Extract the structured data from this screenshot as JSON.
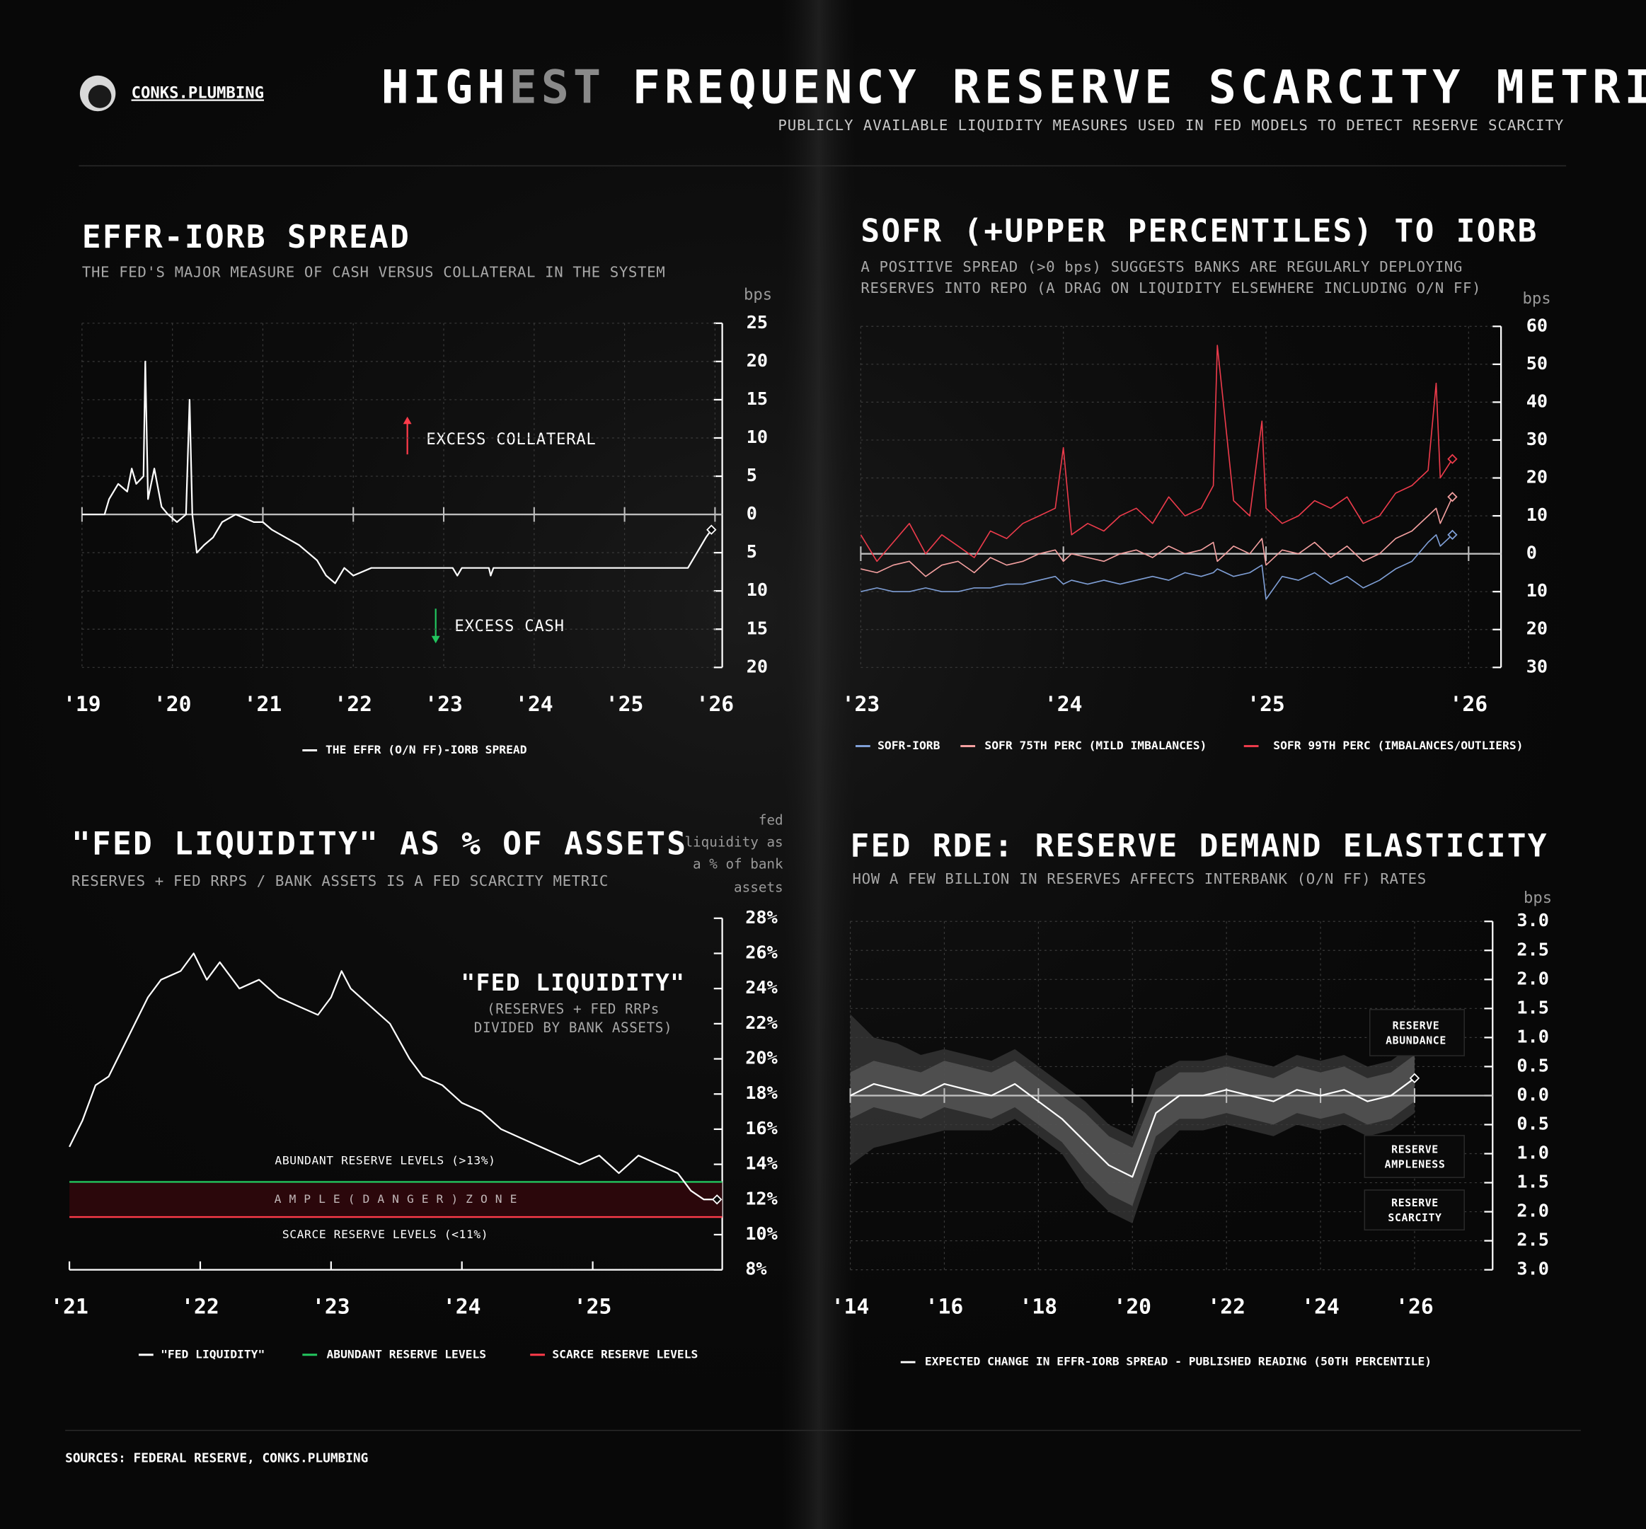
{
  "header": {
    "brand": "CONKS.PLUMBING",
    "title_parts": [
      "HIGH",
      "EST",
      "FREQUENCY RESERVE SCARCITY METRICS"
    ],
    "subtitle": "PUBLICLY AVAILABLE LIQUIDITY MEASURES USED IN FED MODELS TO DETECT RESERVE SCARCITY"
  },
  "chart_data": [
    {
      "type": "line",
      "title": "EFFR-IORB SPREAD",
      "subtitle": "THE FED'S MAJOR MEASURE OF CASH VERSUS COLLATERAL IN THE SYSTEM",
      "y_unit": "bps",
      "annotations": [
        {
          "text": "EXCESS COLLATERAL",
          "color": "#ff3b4a"
        },
        {
          "text": "EXCESS CASH",
          "color": "#22c55e"
        }
      ],
      "xlim": [
        2019,
        2026.08
      ],
      "xticks": [
        {
          "value": 2019,
          "label": "'19"
        },
        {
          "value": 2020,
          "label": "'20"
        },
        {
          "value": 2021,
          "label": "'21"
        },
        {
          "value": 2022,
          "label": "'22"
        },
        {
          "value": 2023,
          "label": "'23"
        },
        {
          "value": 2024,
          "label": "'24"
        },
        {
          "value": 2025,
          "label": "'25"
        },
        {
          "value": 2026,
          "label": "'26"
        }
      ],
      "ylim": [
        -20,
        25
      ],
      "yticks": [
        25,
        20,
        15,
        10,
        5,
        0,
        {
          "value": -5,
          "label": "5"
        },
        {
          "value": -10,
          "label": "10"
        },
        {
          "value": -15,
          "label": "15"
        },
        {
          "value": -20,
          "label": "20"
        }
      ],
      "grid": true,
      "zero_line": true,
      "x": [
        2019.0,
        2019.25,
        2019.3,
        2019.4,
        2019.5,
        2019.55,
        2019.6,
        2019.68,
        2019.7,
        2019.73,
        2019.8,
        2019.88,
        2019.95,
        2020.05,
        2020.15,
        2020.19,
        2020.22,
        2020.27,
        2020.35,
        2020.45,
        2020.55,
        2020.7,
        2020.9,
        2021.0,
        2021.1,
        2021.25,
        2021.4,
        2021.5,
        2021.6,
        2021.7,
        2021.8,
        2021.9,
        2022.0,
        2022.2,
        2022.5,
        2022.8,
        2023.1,
        2023.15,
        2023.2,
        2023.5,
        2023.52,
        2023.55,
        2024.0,
        2024.5,
        2025.0,
        2025.5,
        2025.7,
        2025.8,
        2025.9,
        2025.96
      ],
      "series": [
        {
          "name": "THE EFFR (O/N FF)-IORB SPREAD",
          "color": "#ffffff",
          "values": [
            0,
            0,
            2,
            4,
            3,
            6,
            4,
            5,
            20,
            2,
            6,
            1,
            0,
            -1,
            0,
            15,
            0,
            -5,
            -4,
            -3,
            -1,
            0,
            -1,
            -1,
            -2,
            -3,
            -4,
            -5,
            -6,
            -8,
            -9,
            -7,
            -8,
            -7,
            -7,
            -7,
            -7,
            -8,
            -7,
            -7,
            -8,
            -7,
            -7,
            -7,
            -7,
            -7,
            -7,
            -5,
            -3,
            -2
          ]
        }
      ]
    },
    {
      "type": "line",
      "title": "SOFR (+UPPER PERCENTILES) TO IORB",
      "subtitle_lines": [
        "A POSITIVE SPREAD (>0 bps) SUGGESTS BANKS ARE REGULARLY DEPLOYING",
        "RESERVES INTO REPO (A DRAG ON LIQUIDITY ELSEWHERE INCLUDING O/N FF)"
      ],
      "y_unit": "bps",
      "xlim": [
        2023,
        2026.16
      ],
      "xticks": [
        {
          "value": 2023,
          "label": "'23"
        },
        {
          "value": 2024,
          "label": "'24"
        },
        {
          "value": 2025,
          "label": "'25"
        },
        {
          "value": 2026,
          "label": "'26"
        }
      ],
      "ylim": [
        -30,
        60
      ],
      "yticks": [
        60,
        50,
        40,
        30,
        20,
        10,
        0,
        {
          "value": -10,
          "label": "10"
        },
        {
          "value": -20,
          "label": "20"
        },
        {
          "value": -30,
          "label": "30"
        }
      ],
      "grid": true,
      "zero_line": true,
      "x": [
        2023.0,
        2023.08,
        2023.16,
        2023.24,
        2023.32,
        2023.4,
        2023.48,
        2023.56,
        2023.64,
        2023.72,
        2023.8,
        2023.88,
        2023.96,
        2024.0,
        2024.04,
        2024.12,
        2024.2,
        2024.28,
        2024.36,
        2024.44,
        2024.52,
        2024.6,
        2024.68,
        2024.74,
        2024.76,
        2024.84,
        2024.92,
        2024.98,
        2025.0,
        2025.08,
        2025.16,
        2025.24,
        2025.32,
        2025.4,
        2025.48,
        2025.56,
        2025.64,
        2025.72,
        2025.8,
        2025.84,
        2025.86,
        2025.92
      ],
      "series": [
        {
          "name": "SOFR-IORB",
          "color": "#7f9fd6",
          "values": [
            -10,
            -9,
            -10,
            -10,
            -9,
            -10,
            -10,
            -9,
            -9,
            -8,
            -8,
            -7,
            -6,
            -8,
            -7,
            -8,
            -7,
            -8,
            -7,
            -6,
            -7,
            -5,
            -6,
            -5,
            -4,
            -6,
            -5,
            -3,
            -12,
            -6,
            -7,
            -5,
            -8,
            -6,
            -9,
            -7,
            -4,
            -2,
            3,
            5,
            2,
            5
          ]
        },
        {
          "name": "SOFR 75TH PERC (MILD IMBALANCES)",
          "color": "#f4a0a0",
          "values": [
            -4,
            -5,
            -3,
            -2,
            -6,
            -3,
            -2,
            -5,
            -1,
            -3,
            -2,
            0,
            1,
            -2,
            0,
            -1,
            -2,
            0,
            1,
            -1,
            2,
            0,
            1,
            3,
            -2,
            2,
            0,
            4,
            -3,
            1,
            0,
            3,
            -1,
            2,
            -2,
            0,
            4,
            6,
            10,
            12,
            8,
            15
          ]
        },
        {
          "name": "SOFR 99TH PERC (IMBALANCES/OUTLIERS)",
          "color": "#ec3b4b",
          "values": [
            5,
            -2,
            3,
            8,
            0,
            5,
            2,
            -1,
            6,
            4,
            8,
            10,
            12,
            28,
            5,
            8,
            6,
            10,
            12,
            8,
            15,
            10,
            12,
            18,
            55,
            14,
            10,
            35,
            12,
            8,
            10,
            14,
            12,
            15,
            8,
            10,
            16,
            18,
            22,
            45,
            20,
            25
          ]
        }
      ]
    },
    {
      "type": "line",
      "title": "\"FED LIQUIDITY\" AS % OF ASSETS",
      "subtitle": "RESERVES + FED RRPS / BANK ASSETS IS A FED SCARCITY METRIC",
      "y_unit_lines": [
        "fed",
        "liquidity as",
        "a % of bank",
        "assets"
      ],
      "annotation": {
        "title": "\"FED LIQUIDITY\"",
        "lines": [
          "(RESERVES + FED RRPs",
          "DIVIDED BY BANK ASSETS)"
        ]
      },
      "zone_label": "A M P L E   ( D A N G E R )   Z O N E",
      "zone_color": "#2b070b",
      "xlim": [
        2021,
        2025.99
      ],
      "xticks": [
        {
          "value": 2021,
          "label": "'21"
        },
        {
          "value": 2022,
          "label": "'22"
        },
        {
          "value": 2023,
          "label": "'23"
        },
        {
          "value": 2024,
          "label": "'24"
        },
        {
          "value": 2025,
          "label": "'25"
        }
      ],
      "ylim": [
        8,
        28
      ],
      "yticks": [
        {
          "value": 28,
          "label": "28%"
        },
        {
          "value": 26,
          "label": "26%"
        },
        {
          "value": 24,
          "label": "24%"
        },
        {
          "value": 22,
          "label": "22%"
        },
        {
          "value": 20,
          "label": "20%"
        },
        {
          "value": 18,
          "label": "18%"
        },
        {
          "value": 16,
          "label": "16%"
        },
        {
          "value": 14,
          "label": "14%"
        },
        {
          "value": 12,
          "label": "12%"
        },
        {
          "value": 10,
          "label": "10%"
        },
        {
          "value": 8,
          "label": "8%"
        }
      ],
      "grid": false,
      "zero_line": false,
      "reference_lines": [
        {
          "name": "ABUNDANT RESERVE LEVELS",
          "label": "ABUNDANT RESERVE LEVELS (>13%)",
          "value": 13,
          "color": "#22c55e"
        },
        {
          "name": "SCARCE RESERVE LEVELS",
          "label": "SCARCE RESERVE LEVELS (<11%)",
          "value": 11,
          "color": "#ff3b4a"
        }
      ],
      "x": [
        2021.0,
        2021.1,
        2021.2,
        2021.3,
        2021.4,
        2021.5,
        2021.6,
        2021.7,
        2021.85,
        2021.95,
        2022.05,
        2022.15,
        2022.3,
        2022.45,
        2022.6,
        2022.75,
        2022.9,
        2023.0,
        2023.08,
        2023.15,
        2023.3,
        2023.45,
        2023.6,
        2023.7,
        2023.85,
        2024.0,
        2024.15,
        2024.3,
        2024.45,
        2024.6,
        2024.75,
        2024.9,
        2025.05,
        2025.2,
        2025.35,
        2025.5,
        2025.65,
        2025.75,
        2025.85,
        2025.95
      ],
      "series": [
        {
          "name": "\"FED LIQUIDITY\"",
          "color": "#ffffff",
          "values": [
            15,
            16.5,
            18.5,
            19,
            20.5,
            22,
            23.5,
            24.5,
            25,
            26,
            24.5,
            25.5,
            24,
            24.5,
            23.5,
            23,
            22.5,
            23.5,
            25,
            24,
            23,
            22,
            20,
            19,
            18.5,
            17.5,
            17,
            16,
            15.5,
            15,
            14.5,
            14,
            14.5,
            13.5,
            14.5,
            14,
            13.5,
            12.5,
            12,
            12
          ]
        }
      ]
    },
    {
      "type": "line",
      "title": "FED RDE: RESERVE DEMAND ELASTICITY",
      "subtitle": "HOW A FEW BILLION IN RESERVES AFFECTS INTERBANK (O/N FF) RATES",
      "y_unit": "bps",
      "zones": [
        {
          "lines": [
            "RESERVE",
            "ABUNDANCE"
          ],
          "color": "#22c55e"
        },
        {
          "lines": [
            "RESERVE",
            "AMPLENESS"
          ],
          "color": "#ff7a7a"
        },
        {
          "lines": [
            "RESERVE",
            "SCARCITY"
          ],
          "color": "#ff3b4a"
        }
      ],
      "xlim": [
        2014,
        2027.66
      ],
      "xticks": [
        {
          "value": 2014,
          "label": "'14"
        },
        {
          "value": 2016,
          "label": "'16"
        },
        {
          "value": 2018,
          "label": "'18"
        },
        {
          "value": 2020,
          "label": "'20"
        },
        {
          "value": 2022,
          "label": "'22"
        },
        {
          "value": 2024,
          "label": "'24"
        },
        {
          "value": 2026,
          "label": "'26"
        }
      ],
      "ylim": [
        -3,
        3
      ],
      "yticks": [
        {
          "value": 3,
          "label": "3.0"
        },
        2.5,
        {
          "value": 2,
          "label": "2.0"
        },
        1.5,
        {
          "value": 1,
          "label": "1.0"
        },
        0.5,
        {
          "value": 0,
          "label": "0.0"
        },
        {
          "value": -0.5,
          "label": "0.5"
        },
        {
          "value": -1,
          "label": "1.0"
        },
        {
          "value": -1.5,
          "label": "1.5"
        },
        {
          "value": -2,
          "label": "2.0"
        },
        {
          "value": -2.5,
          "label": "2.5"
        },
        {
          "value": -3,
          "label": "3.0"
        }
      ],
      "grid": true,
      "zero_line": true,
      "x": [
        2014,
        2014.5,
        2015,
        2015.5,
        2016,
        2016.5,
        2017,
        2017.5,
        2018,
        2018.5,
        2019,
        2019.5,
        2020,
        2020.5,
        2021,
        2021.5,
        2022,
        2022.5,
        2023,
        2023.5,
        2024,
        2024.5,
        2025,
        2025.5,
        2026
      ],
      "bands": [
        {
          "color": "#3a3a3a",
          "lower": [
            -1.2,
            -0.9,
            -0.8,
            -0.7,
            -0.6,
            -0.6,
            -0.6,
            -0.4,
            -0.7,
            -1.0,
            -1.6,
            -2.0,
            -2.2,
            -1.0,
            -0.6,
            -0.6,
            -0.5,
            -0.6,
            -0.7,
            -0.5,
            -0.6,
            -0.5,
            -0.7,
            -0.6,
            -0.3
          ],
          "upper": [
            1.4,
            1.0,
            0.9,
            0.7,
            0.8,
            0.7,
            0.6,
            0.8,
            0.5,
            0.2,
            -0.1,
            -0.5,
            -0.7,
            0.4,
            0.6,
            0.6,
            0.7,
            0.6,
            0.5,
            0.7,
            0.6,
            0.7,
            0.5,
            0.6,
            0.9
          ]
        },
        {
          "color": "#5a5a5a",
          "lower": [
            -0.4,
            -0.2,
            -0.3,
            -0.4,
            -0.2,
            -0.3,
            -0.4,
            -0.2,
            -0.5,
            -0.8,
            -1.3,
            -1.7,
            -1.9,
            -0.7,
            -0.4,
            -0.4,
            -0.3,
            -0.4,
            -0.5,
            -0.3,
            -0.4,
            -0.3,
            -0.5,
            -0.4,
            -0.1
          ],
          "upper": [
            0.4,
            0.6,
            0.5,
            0.4,
            0.6,
            0.5,
            0.4,
            0.6,
            0.3,
            0.0,
            -0.3,
            -0.7,
            -0.9,
            0.1,
            0.4,
            0.4,
            0.5,
            0.4,
            0.3,
            0.5,
            0.4,
            0.5,
            0.3,
            0.4,
            0.7
          ]
        }
      ],
      "series": [
        {
          "name": "EXPECTED CHANGE IN EFFR-IORB SPREAD - PUBLISHED READING (50TH PERCENTILE)",
          "color": "#ffffff",
          "values": [
            0.0,
            0.2,
            0.1,
            0.0,
            0.2,
            0.1,
            0.0,
            0.2,
            -0.1,
            -0.4,
            -0.8,
            -1.2,
            -1.4,
            -0.3,
            0.0,
            0.0,
            0.1,
            0.0,
            -0.1,
            0.1,
            0.0,
            0.1,
            -0.1,
            0.0,
            0.3
          ]
        }
      ]
    }
  ],
  "footer": {
    "sources": "SOURCES: FEDERAL RESERVE, CONKS.PLUMBING"
  }
}
